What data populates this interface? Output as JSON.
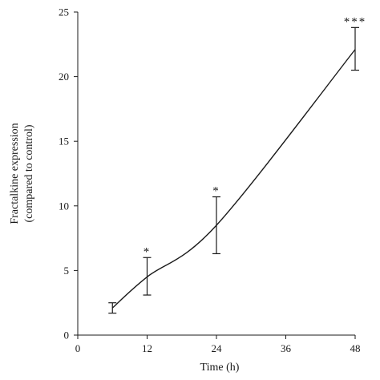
{
  "chart_data": {
    "type": "line",
    "title": "",
    "xlabel": "Time (h)",
    "ylabel_line1": "Fractalkine expression",
    "ylabel_line2": "(compared to control)",
    "x": [
      6,
      12,
      24,
      48
    ],
    "series": [
      {
        "values": [
          2.1,
          4.5,
          8.5,
          22.1
        ],
        "error_upper": [
          2.5,
          6.0,
          10.7,
          23.8
        ],
        "error_lower": [
          1.7,
          3.1,
          6.3,
          20.5
        ],
        "significance": [
          "",
          "*",
          "*",
          "***"
        ]
      }
    ],
    "xlim": [
      0,
      48
    ],
    "ylim": [
      0,
      25
    ],
    "x_ticks": [
      0,
      12,
      24,
      36,
      48
    ],
    "x_tick_labels": [
      "0",
      "12",
      "24",
      "36",
      "48"
    ],
    "y_ticks": [
      0,
      5,
      10,
      15,
      20,
      25
    ],
    "y_tick_labels": [
      "0",
      "5",
      "10",
      "15",
      "20",
      "25"
    ],
    "grid": false,
    "legend": "none",
    "line_color": "#1a1a1a"
  }
}
